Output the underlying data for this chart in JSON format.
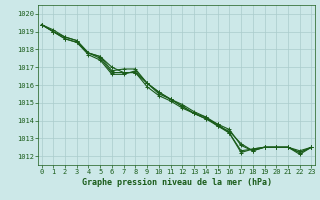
{
  "background_color": "#cce8e8",
  "grid_color": "#aacccc",
  "line_color": "#1a5c1a",
  "marker_color": "#1a5c1a",
  "xlabel": "Graphe pression niveau de la mer (hPa)",
  "xlabel_fontsize": 6.0,
  "ylim": [
    1011.5,
    1020.5
  ],
  "xlim": [
    -0.3,
    23.3
  ],
  "yticks": [
    1012,
    1013,
    1014,
    1015,
    1016,
    1017,
    1018,
    1019,
    1020
  ],
  "xticks": [
    0,
    1,
    2,
    3,
    4,
    5,
    6,
    7,
    8,
    9,
    10,
    11,
    12,
    13,
    14,
    15,
    16,
    17,
    18,
    19,
    20,
    21,
    22,
    23
  ],
  "series": [
    [
      1019.4,
      1019.0,
      1018.7,
      1018.5,
      1017.8,
      1017.5,
      1016.7,
      1016.7,
      1016.7,
      1015.9,
      1015.4,
      1015.1,
      1014.7,
      1014.4,
      1014.1,
      1013.7,
      1013.3,
      1012.2,
      1012.4,
      1012.5,
      1012.5,
      1012.5,
      1012.1,
      1012.5
    ],
    [
      1019.4,
      1019.0,
      1018.6,
      1018.4,
      1017.8,
      1017.6,
      1016.8,
      1016.9,
      1016.9,
      1016.1,
      1015.6,
      1015.2,
      1014.8,
      1014.4,
      1014.2,
      1013.7,
      1013.4,
      1012.7,
      1012.3,
      1012.5,
      1012.5,
      1012.5,
      1012.2,
      1012.5
    ],
    [
      1019.4,
      1019.0,
      1018.6,
      1018.4,
      1017.7,
      1017.4,
      1016.6,
      1016.6,
      1016.8,
      1016.1,
      1015.6,
      1015.2,
      1014.9,
      1014.5,
      1014.2,
      1013.8,
      1013.5,
      1012.6,
      1012.3,
      1012.5,
      1012.5,
      1012.5,
      1012.3,
      1012.5
    ],
    [
      1019.4,
      1019.1,
      1018.7,
      1018.5,
      1017.8,
      1017.6,
      1017.0,
      1016.7,
      1016.7,
      1016.1,
      1015.5,
      1015.2,
      1014.8,
      1014.4,
      1014.1,
      1013.8,
      1013.3,
      1012.3,
      1012.4,
      1012.5,
      1012.5,
      1012.5,
      1012.2,
      1012.5
    ]
  ],
  "marker": "+",
  "markersize": 3,
  "linewidth": 0.8,
  "tick_fontsize": 5.0,
  "tick_color": "#1a5c1a"
}
